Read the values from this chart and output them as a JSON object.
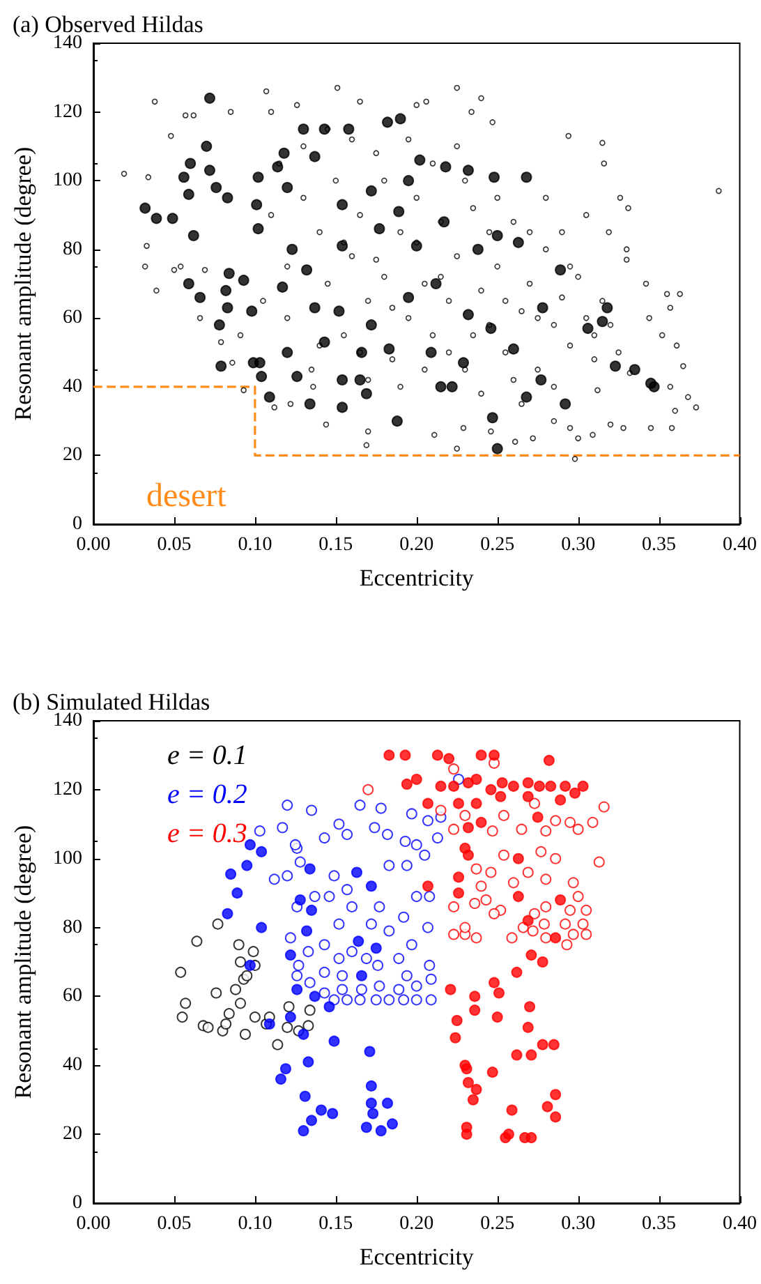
{
  "chart_data": [
    {
      "type": "scatter",
      "title": "(a) Observed Hildas",
      "xlabel": "Eccentricity",
      "ylabel": "Resonant amplitude (degree)",
      "xlim": [
        0,
        0.4
      ],
      "ylim": [
        0,
        140
      ],
      "xticks": [
        {
          "value": 0,
          "label": "0.00"
        },
        {
          "value": 0.05,
          "label": "0.05"
        },
        {
          "value": 0.1,
          "label": "0.10"
        },
        {
          "value": 0.15,
          "label": "0.15"
        },
        {
          "value": 0.2,
          "label": "0.20"
        },
        {
          "value": 0.25,
          "label": "0.25"
        },
        {
          "value": 0.3,
          "label": "0.30"
        },
        {
          "value": 0.35,
          "label": "0.35"
        },
        {
          "value": 0.4,
          "label": "0.40"
        }
      ],
      "yticks": [
        0,
        20,
        40,
        60,
        80,
        100,
        120,
        140
      ],
      "grid": false,
      "legend": false,
      "marker": "circle",
      "annotations": [
        "desert"
      ],
      "series": [
        {
          "color": "#000000",
          "x": [
            0.019,
            0.038,
            0.034,
            0.048,
            0.057,
            0.062,
            0.033,
            0.032,
            0.039,
            0.05,
            0.054,
            0.069,
            0.066,
            0.085,
            0.079,
            0.086,
            0.091,
            0.107,
            0.11,
            0.126,
            0.151,
            0.165,
            0.206,
            0.2,
            0.225,
            0.24,
            0.247,
            0.234,
            0.294,
            0.315,
            0.316,
            0.387,
            0.326,
            0.331,
            0.319,
            0.33,
            0.33,
            0.342,
            0.355,
            0.363,
            0.357,
            0.344,
            0.352,
            0.361,
            0.365,
            0.357,
            0.368,
            0.373,
            0.36,
            0.358,
            0.345,
            0.328,
            0.32,
            0.309,
            0.3,
            0.298,
            0.295,
            0.285,
            0.272,
            0.261,
            0.246,
            0.225,
            0.229,
            0.211,
            0.169,
            0.144,
            0.17,
            0.122,
            0.112,
            0.136,
            0.093,
            0.312,
            0.332,
            0.11,
            0.12,
            0.13,
            0.14,
            0.145,
            0.15,
            0.155,
            0.16,
            0.165,
            0.17,
            0.175,
            0.18,
            0.185,
            0.19,
            0.195,
            0.2,
            0.205,
            0.21,
            0.215,
            0.22,
            0.225,
            0.23,
            0.235,
            0.24,
            0.245,
            0.25,
            0.255,
            0.26,
            0.265,
            0.27,
            0.275,
            0.28,
            0.285,
            0.29,
            0.295,
            0.3,
            0.305,
            0.31,
            0.315,
            0.12,
            0.13,
            0.14,
            0.16,
            0.17,
            0.18,
            0.19,
            0.2,
            0.21,
            0.22,
            0.23,
            0.24,
            0.25,
            0.26,
            0.27,
            0.28,
            0.29,
            0.105,
            0.115,
            0.135,
            0.145,
            0.155,
            0.165,
            0.175,
            0.185,
            0.195,
            0.205,
            0.215,
            0.225,
            0.235,
            0.245,
            0.255,
            0.265,
            0.275,
            0.285,
            0.295,
            0.305,
            0.31,
            0.32,
            0.325
          ],
          "values": [
            102,
            123,
            101,
            113,
            119,
            119,
            81,
            75,
            68,
            74,
            75,
            74,
            60,
            120,
            53,
            47,
            55,
            126,
            120,
            122,
            127,
            123,
            123,
            122,
            127,
            124,
            117,
            120,
            113,
            111,
            105,
            97,
            95,
            92,
            85,
            80,
            77,
            70,
            67,
            67,
            63,
            60,
            55,
            52,
            46,
            40,
            37,
            34,
            33,
            28,
            28,
            28,
            29,
            26,
            25,
            19,
            28,
            30,
            25,
            24,
            27,
            22,
            28,
            26,
            23,
            29,
            27,
            35,
            34,
            40,
            39,
            39,
            44,
            90,
            75,
            95,
            85,
            70,
            100,
            55,
            78,
            90,
            65,
            108,
            72,
            48,
            85,
            60,
            95,
            70,
            55,
            88,
            65,
            78,
            45,
            92,
            68,
            58,
            75,
            50,
            88,
            62,
            70,
            45,
            80,
            58,
            66,
            52,
            72,
            60,
            48,
            65,
            60,
            110,
            52,
            112,
            42,
            100,
            40,
            82,
            105,
            50,
            100,
            38,
            95,
            42,
            85,
            95,
            85,
            65,
            105,
            45,
            115,
            82,
            50,
            77,
            63,
            112,
            45,
            72,
            110,
            55,
            85,
            65,
            35,
            60,
            40,
            75,
            90,
            55,
            58,
            50
          ]
        },
        {
          "color": "#000000",
          "x": [
            0.072,
            0.032,
            0.039,
            0.049,
            0.06,
            0.056,
            0.07,
            0.059,
            0.062,
            0.059,
            0.066,
            0.072,
            0.076,
            0.083,
            0.078,
            0.082,
            0.084,
            0.079,
            0.093,
            0.098,
            0.083,
            0.102,
            0.101,
            0.102,
            0.099,
            0.103,
            0.104,
            0.109,
            0.114,
            0.118,
            0.12,
            0.13,
            0.143,
            0.158,
            0.137,
            0.134,
            0.126,
            0.12,
            0.154,
            0.154,
            0.165,
            0.169,
            0.188,
            0.182,
            0.19,
            0.202,
            0.218,
            0.232,
            0.248,
            0.268,
            0.25,
            0.247,
            0.268,
            0.277,
            0.292,
            0.318,
            0.315,
            0.323,
            0.335,
            0.345,
            0.347,
            0.306,
            0.289,
            0.263,
            0.25,
            0.215,
            0.222,
            0.137,
            0.152,
            0.172,
            0.195,
            0.212,
            0.232,
            0.246,
            0.26,
            0.154,
            0.177,
            0.189,
            0.2,
            0.217,
            0.238,
            0.132,
            0.117,
            0.123,
            0.143,
            0.166,
            0.183,
            0.209,
            0.229,
            0.278,
            0.172,
            0.154,
            0.195
          ],
          "values": [
            124,
            92,
            89,
            89,
            105,
            101,
            110,
            96,
            84,
            70,
            66,
            103,
            98,
            95,
            58,
            68,
            73,
            46,
            71,
            62,
            63,
            101,
            93,
            86,
            47,
            47,
            43,
            37,
            104,
            108,
            98,
            115,
            115,
            115,
            107,
            35,
            43,
            50,
            34,
            42,
            42,
            38,
            30,
            117,
            118,
            106,
            104,
            103,
            101,
            101,
            22,
            31,
            37,
            42,
            35,
            63,
            59,
            46,
            45,
            41,
            40,
            57,
            74,
            82,
            84,
            40,
            40,
            63,
            62,
            58,
            66,
            70,
            61,
            57,
            51,
            81,
            86,
            91,
            81,
            88,
            80,
            74,
            69,
            80,
            53,
            50,
            51,
            50,
            47,
            63,
            97,
            93,
            100
          ]
        },
        {
          "type": "line",
          "color": "#ff8c1a",
          "line_style": "dashed",
          "marker": "none",
          "x": [
            0,
            0.1,
            0.1,
            0.4
          ],
          "values": [
            40,
            40,
            20,
            20
          ]
        }
      ]
    },
    {
      "type": "scatter",
      "title": "(b) Simulated Hildas",
      "xlabel": "Eccentricity",
      "ylabel": "Resonant amplitude (degree)",
      "xlim": [
        0,
        0.4
      ],
      "ylim": [
        0,
        140
      ],
      "xticks": [
        {
          "value": 0,
          "label": "0.00"
        },
        {
          "value": 0.05,
          "label": "0.05"
        },
        {
          "value": 0.1,
          "label": "0.10"
        },
        {
          "value": 0.15,
          "label": "0.15"
        },
        {
          "value": 0.2,
          "label": "0.20"
        },
        {
          "value": 0.25,
          "label": "0.25"
        },
        {
          "value": 0.3,
          "label": "0.30"
        },
        {
          "value": 0.35,
          "label": "0.35"
        },
        {
          "value": 0.4,
          "label": "0.40"
        }
      ],
      "yticks": [
        0,
        20,
        40,
        60,
        80,
        100,
        120,
        140
      ],
      "grid": false,
      "legend": "top left",
      "marker": "circle",
      "series": [
        {
          "name": "e = 0.1",
          "color": "#000000",
          "x": [
            0.054,
            0.064,
            0.057,
            0.055,
            0.077,
            0.068,
            0.071,
            0.08,
            0.084,
            0.088,
            0.091,
            0.093,
            0.095,
            0.091,
            0.09,
            0.099,
            0.1,
            0.076,
            0.094,
            0.1,
            0.107,
            0.114,
            0.12,
            0.127,
            0.133,
            0.134,
            0.121,
            0.109,
            0.082
          ],
          "values": [
            67,
            76,
            58,
            54,
            81,
            51.5,
            51,
            50,
            55,
            62,
            58,
            65,
            66,
            70,
            75,
            73,
            69,
            61,
            49,
            54,
            52,
            46,
            51,
            50,
            51.5,
            56,
            57,
            54,
            52
          ]
        },
        {
          "name": "e = 0.2",
          "color": "#0000ff",
          "x": [
            0.12,
            0.103,
            0.117,
            0.135,
            0.165,
            0.178,
            0.197,
            0.207,
            0.215,
            0.226,
            0.152,
            0.143,
            0.126,
            0.112,
            0.12,
            0.128,
            0.125,
            0.157,
            0.174,
            0.182,
            0.193,
            0.2,
            0.213,
            0.205,
            0.194,
            0.183,
            0.149,
            0.157,
            0.146,
            0.137,
            0.126,
            0.152,
            0.16,
            0.177,
            0.192,
            0.2,
            0.208,
            0.207,
            0.197,
            0.183,
            0.172,
            0.16,
            0.152,
            0.143,
            0.133,
            0.122,
            0.127,
            0.143,
            0.154,
            0.176,
            0.189,
            0.194,
            0.208,
            0.209,
            0.209,
            0.2,
            0.192,
            0.183,
            0.175,
            0.165,
            0.157,
            0.149,
            0.143,
            0.154,
            0.166,
            0.177,
            0.189,
            0.2,
            0.126,
            0.134,
            0.169
          ],
          "values": [
            115.5,
            108,
            109,
            114,
            115.5,
            114.6,
            113,
            111,
            112,
            123,
            110,
            106,
            103,
            94,
            95,
            99,
            104,
            107,
            109,
            107,
            105,
            104,
            106,
            101,
            98,
            98,
            95,
            91,
            89,
            89,
            86,
            81,
            86,
            86,
            83,
            89,
            89,
            80,
            75,
            79,
            81,
            73,
            71,
            75,
            73,
            77,
            69,
            67,
            66,
            69,
            71,
            66,
            69,
            65,
            59,
            59,
            59,
            59,
            59,
            59,
            59,
            59,
            61,
            62,
            62,
            63,
            62,
            63,
            66,
            64,
            71
          ]
        },
        {
          "color": "#0000ff",
          "x": [
            0.097,
            0.095,
            0.085,
            0.089,
            0.083,
            0.104,
            0.104,
            0.097,
            0.109,
            0.122,
            0.13,
            0.126,
            0.132,
            0.122,
            0.135,
            0.134,
            0.149,
            0.133,
            0.119,
            0.116,
            0.171,
            0.131,
            0.141,
            0.148,
            0.135,
            0.13,
            0.172,
            0.172,
            0.182,
            0.173,
            0.169,
            0.178,
            0.185,
            0.166,
            0.164,
            0.175,
            0.163,
            0.172,
            0.146,
            0.137,
            0.128
          ],
          "values": [
            104,
            98,
            95.5,
            90,
            84,
            80,
            102,
            69,
            52,
            54,
            49,
            62,
            79,
            72,
            85,
            97,
            47,
            41,
            39,
            36,
            44,
            31,
            27,
            26,
            24,
            21,
            34,
            29,
            29,
            26,
            22,
            21,
            23,
            66,
            76,
            74,
            96,
            92,
            57,
            60,
            88
          ]
        },
        {
          "name": "e = 0.3",
          "color": "#ff0000",
          "x": [
            0.17,
            0.215,
            0.223,
            0.23,
            0.248,
            0.223,
            0.247,
            0.254,
            0.265,
            0.273,
            0.28,
            0.286,
            0.295,
            0.3,
            0.309,
            0.316,
            0.313,
            0.277,
            0.286,
            0.28,
            0.269,
            0.254,
            0.26,
            0.246,
            0.237,
            0.24,
            0.243,
            0.236,
            0.223,
            0.252,
            0.248,
            0.297,
            0.3,
            0.305,
            0.295,
            0.28,
            0.273,
            0.303,
            0.292,
            0.279,
            0.272,
            0.305,
            0.293,
            0.28,
            0.266,
            0.259,
            0.237,
            0.23,
            0.223,
            0.23,
            0.297
          ],
          "values": [
            120,
            114,
            108.5,
            112.5,
            127.7,
            126,
            108,
            112.5,
            108.5,
            116,
            108,
            111,
            110.5,
            108.5,
            110.5,
            115,
            99,
            102,
            100,
            94,
            96,
            101,
            93,
            96,
            97,
            92,
            88,
            87,
            86,
            85,
            84,
            93,
            89,
            85,
            85,
            86,
            84,
            81,
            81,
            81,
            79,
            78,
            75,
            77,
            80,
            77,
            77,
            78,
            78,
            80,
            78
          ]
        },
        {
          "color": "#ff0000",
          "x": [
            0.183,
            0.193,
            0.213,
            0.22,
            0.24,
            0.248,
            0.282,
            0.194,
            0.2,
            0.215,
            0.223,
            0.232,
            0.237,
            0.246,
            0.253,
            0.26,
            0.269,
            0.276,
            0.283,
            0.292,
            0.303,
            0.298,
            0.289,
            0.269,
            0.252,
            0.237,
            0.226,
            0.207,
            0.232,
            0.24,
            0.275,
            0.23,
            0.232,
            0.263,
            0.207,
            0.226,
            0.226,
            0.263,
            0.289,
            0.269,
            0.286,
            0.271,
            0.278,
            0.262,
            0.248,
            0.251,
            0.221,
            0.236,
            0.236,
            0.25,
            0.27,
            0.225,
            0.224,
            0.269,
            0.278,
            0.285,
            0.262,
            0.271,
            0.23,
            0.231,
            0.247,
            0.232,
            0.237,
            0.235,
            0.286,
            0.281,
            0.259,
            0.286,
            0.231,
            0.231,
            0.255,
            0.257,
            0.267,
            0.271
          ],
          "values": [
            130,
            130,
            130,
            129,
            130,
            130,
            128.5,
            121.6,
            123,
            121,
            121,
            122,
            123,
            120,
            122,
            121,
            122,
            121,
            121,
            121,
            121,
            119,
            117,
            118,
            118,
            116,
            116,
            116,
            109,
            110.5,
            112,
            103,
            101,
            100,
            92,
            94.6,
            90,
            89,
            88,
            82,
            77,
            72,
            70,
            67,
            64,
            61,
            62,
            60,
            56,
            54,
            57,
            53,
            48,
            51,
            46,
            46,
            43,
            43,
            40,
            39,
            38,
            35,
            33,
            30,
            31.5,
            28,
            27,
            25,
            22,
            20,
            19,
            20,
            19,
            19
          ]
        }
      ]
    }
  ]
}
